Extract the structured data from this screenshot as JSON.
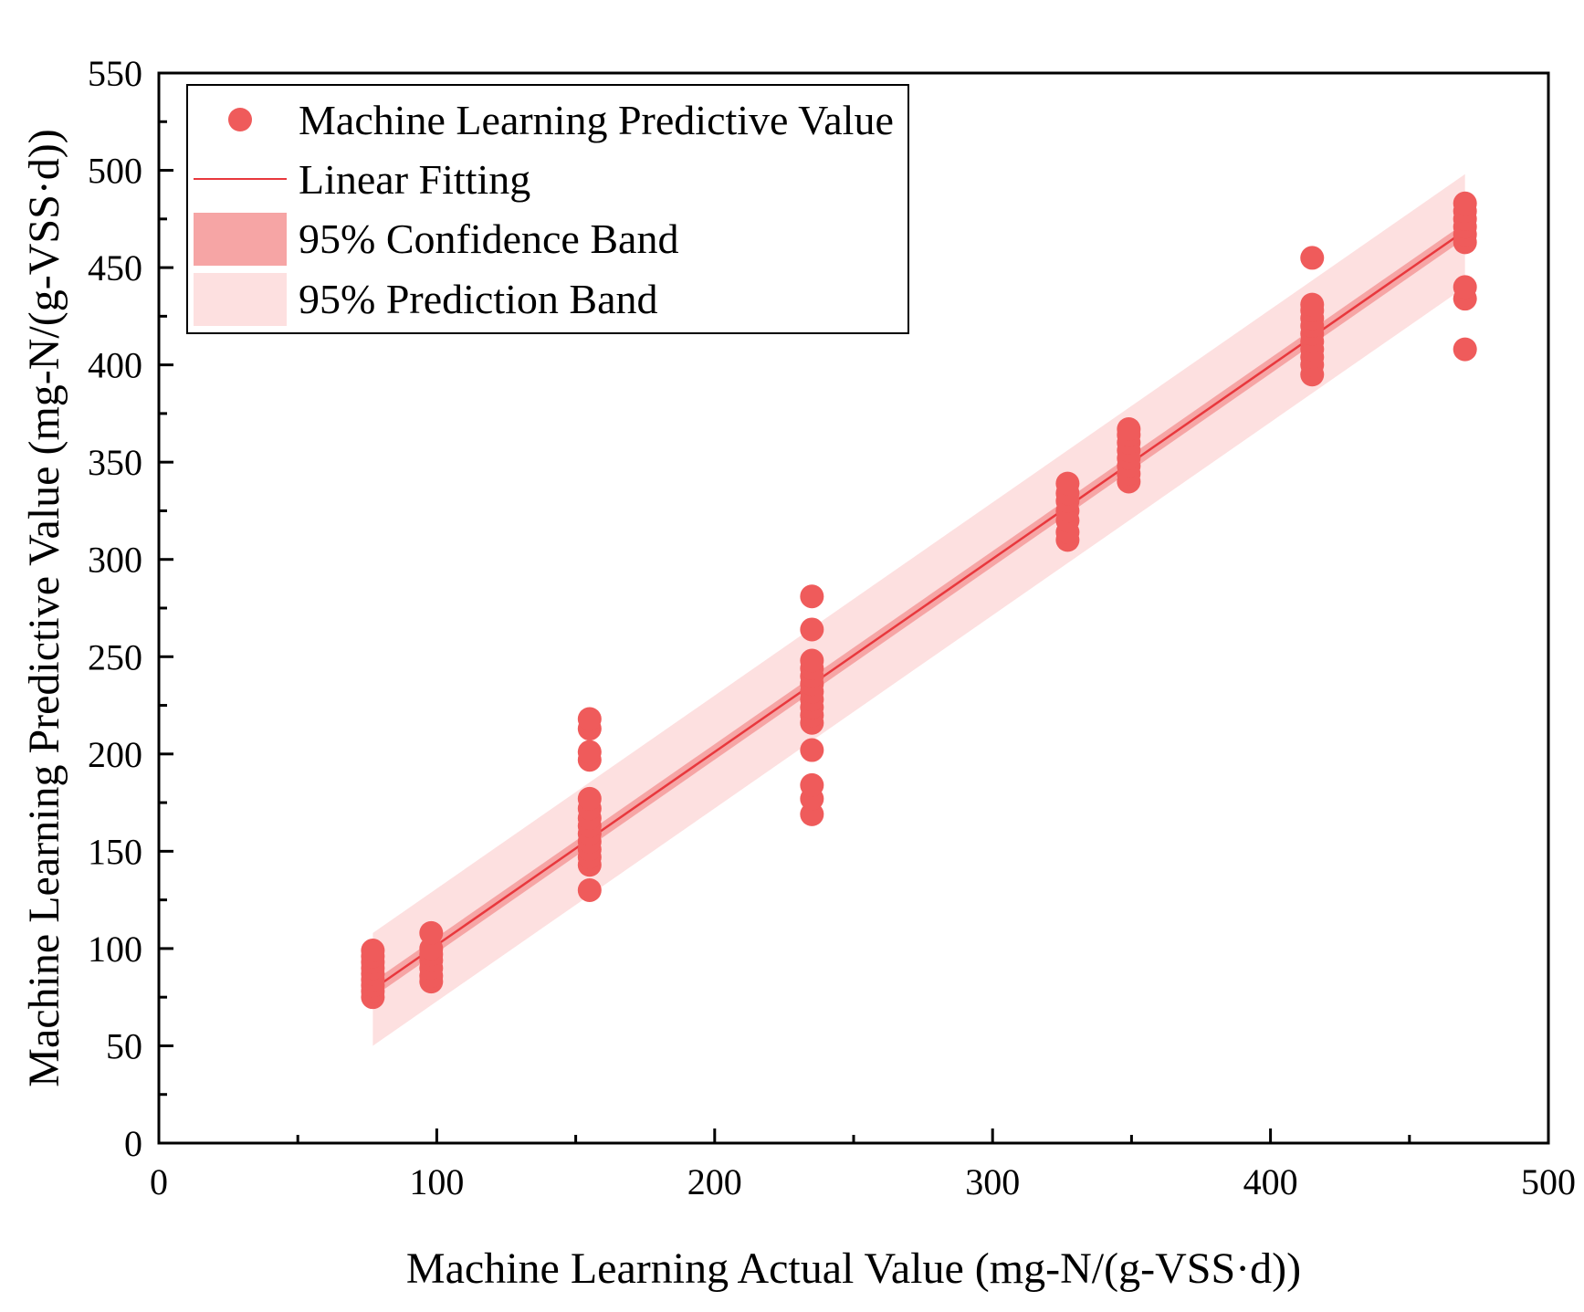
{
  "chart_data": {
    "type": "scatter",
    "xlabel": "Machine Learning Actual Value (mg-N/(g-VSS·d))",
    "ylabel": "Machine Learning Predictive Value (mg-N/(g-VSS·d))",
    "xlim": [
      0,
      500
    ],
    "ylim": [
      0,
      550
    ],
    "x_major_ticks": [
      0,
      100,
      200,
      300,
      400,
      500
    ],
    "x_tick_labels": [
      "0",
      "100",
      "200",
      "300",
      "400",
      "500"
    ],
    "y_major_ticks": [
      0,
      50,
      100,
      150,
      200,
      250,
      300,
      350,
      400,
      450,
      500,
      550
    ],
    "y_tick_labels": [
      "0",
      "50",
      "100",
      "150",
      "200",
      "250",
      "300",
      "350",
      "400",
      "450",
      "500",
      "550"
    ],
    "grid": false,
    "legend_position": "top-left",
    "legend": {
      "points": "Machine Learning Predictive Value",
      "fit": "Linear Fitting",
      "confidence": "95% Confidence Band",
      "prediction": "95% Prediction Band"
    },
    "colors": {
      "points": "#ef5b5b",
      "fit": "#e8383d",
      "confidence": "#f6a5a5",
      "prediction": "#fde0e0"
    },
    "fit": {
      "x_range": [
        77,
        470
      ],
      "y_range": [
        79,
        469
      ]
    },
    "confidence_band": {
      "x": [
        77,
        470
      ],
      "lower": [
        75,
        465
      ],
      "upper": [
        83,
        473
      ]
    },
    "prediction_band": {
      "x": [
        77,
        470
      ],
      "lower": [
        50,
        440
      ],
      "upper": [
        108,
        498
      ]
    },
    "series": [
      {
        "name": "Machine Learning Predictive Value",
        "points": [
          {
            "x": 77,
            "y": 75
          },
          {
            "x": 77,
            "y": 78
          },
          {
            "x": 77,
            "y": 81
          },
          {
            "x": 77,
            "y": 84
          },
          {
            "x": 77,
            "y": 87
          },
          {
            "x": 77,
            "y": 90
          },
          {
            "x": 77,
            "y": 93
          },
          {
            "x": 77,
            "y": 96
          },
          {
            "x": 77,
            "y": 99
          },
          {
            "x": 98,
            "y": 83
          },
          {
            "x": 98,
            "y": 86
          },
          {
            "x": 98,
            "y": 90
          },
          {
            "x": 98,
            "y": 94
          },
          {
            "x": 98,
            "y": 97
          },
          {
            "x": 98,
            "y": 100
          },
          {
            "x": 98,
            "y": 108
          },
          {
            "x": 155,
            "y": 130
          },
          {
            "x": 155,
            "y": 143
          },
          {
            "x": 155,
            "y": 147
          },
          {
            "x": 155,
            "y": 151
          },
          {
            "x": 155,
            "y": 155
          },
          {
            "x": 155,
            "y": 159
          },
          {
            "x": 155,
            "y": 163
          },
          {
            "x": 155,
            "y": 167
          },
          {
            "x": 155,
            "y": 172
          },
          {
            "x": 155,
            "y": 177
          },
          {
            "x": 155,
            "y": 197
          },
          {
            "x": 155,
            "y": 201
          },
          {
            "x": 155,
            "y": 213
          },
          {
            "x": 155,
            "y": 218
          },
          {
            "x": 235,
            "y": 169
          },
          {
            "x": 235,
            "y": 177
          },
          {
            "x": 235,
            "y": 184
          },
          {
            "x": 235,
            "y": 202
          },
          {
            "x": 235,
            "y": 216
          },
          {
            "x": 235,
            "y": 220
          },
          {
            "x": 235,
            "y": 224
          },
          {
            "x": 235,
            "y": 228
          },
          {
            "x": 235,
            "y": 232
          },
          {
            "x": 235,
            "y": 236
          },
          {
            "x": 235,
            "y": 240
          },
          {
            "x": 235,
            "y": 244
          },
          {
            "x": 235,
            "y": 248
          },
          {
            "x": 235,
            "y": 264
          },
          {
            "x": 235,
            "y": 281
          },
          {
            "x": 327,
            "y": 310
          },
          {
            "x": 327,
            "y": 314
          },
          {
            "x": 327,
            "y": 320
          },
          {
            "x": 327,
            "y": 325
          },
          {
            "x": 327,
            "y": 330
          },
          {
            "x": 327,
            "y": 334
          },
          {
            "x": 327,
            "y": 339
          },
          {
            "x": 349,
            "y": 340
          },
          {
            "x": 349,
            "y": 344
          },
          {
            "x": 349,
            "y": 348
          },
          {
            "x": 349,
            "y": 352
          },
          {
            "x": 349,
            "y": 356
          },
          {
            "x": 349,
            "y": 360
          },
          {
            "x": 349,
            "y": 364
          },
          {
            "x": 349,
            "y": 367
          },
          {
            "x": 415,
            "y": 395
          },
          {
            "x": 415,
            "y": 400
          },
          {
            "x": 415,
            "y": 404
          },
          {
            "x": 415,
            "y": 408
          },
          {
            "x": 415,
            "y": 412
          },
          {
            "x": 415,
            "y": 416
          },
          {
            "x": 415,
            "y": 420
          },
          {
            "x": 415,
            "y": 424
          },
          {
            "x": 415,
            "y": 428
          },
          {
            "x": 415,
            "y": 431
          },
          {
            "x": 415,
            "y": 455
          },
          {
            "x": 470,
            "y": 408
          },
          {
            "x": 470,
            "y": 434
          },
          {
            "x": 470,
            "y": 440
          },
          {
            "x": 470,
            "y": 463
          },
          {
            "x": 470,
            "y": 467
          },
          {
            "x": 470,
            "y": 471
          },
          {
            "x": 470,
            "y": 475
          },
          {
            "x": 470,
            "y": 479
          },
          {
            "x": 470,
            "y": 483
          }
        ]
      }
    ]
  }
}
